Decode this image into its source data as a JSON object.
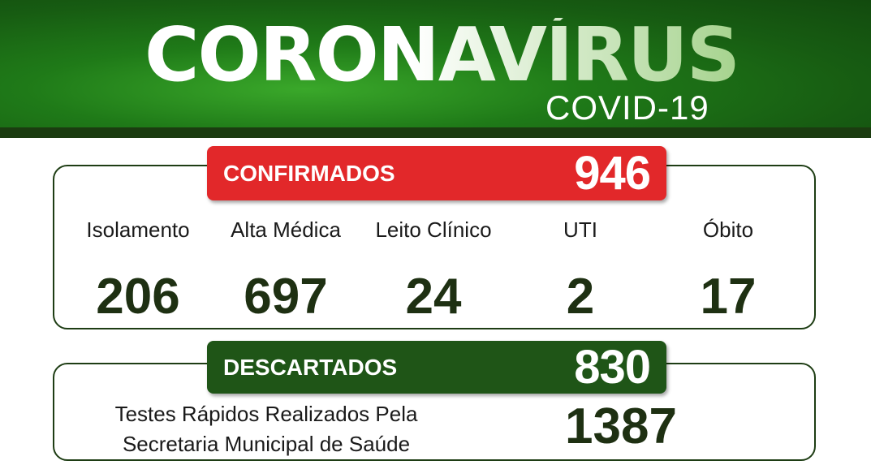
{
  "header": {
    "title": "CORONAVÍRUS",
    "subtitle": "COVID-19"
  },
  "confirmados": {
    "label": "CONFIRMADOS",
    "value": "946",
    "color": "#e2282a",
    "stats": [
      {
        "label": "Isolamento",
        "value": "206"
      },
      {
        "label": "Alta Médica",
        "value": "697"
      },
      {
        "label": "Leito Clínico",
        "value": "24"
      },
      {
        "label": "UTI",
        "value": "2"
      },
      {
        "label": "Óbito",
        "value": "17"
      }
    ]
  },
  "descartados": {
    "label": "DESCARTADOS",
    "value": "830",
    "color": "#1f5517"
  },
  "testes": {
    "line1": "Testes Rápidos Realizados Pela",
    "line2": "Secretaria Municipal de Saúde",
    "value": "1387"
  }
}
